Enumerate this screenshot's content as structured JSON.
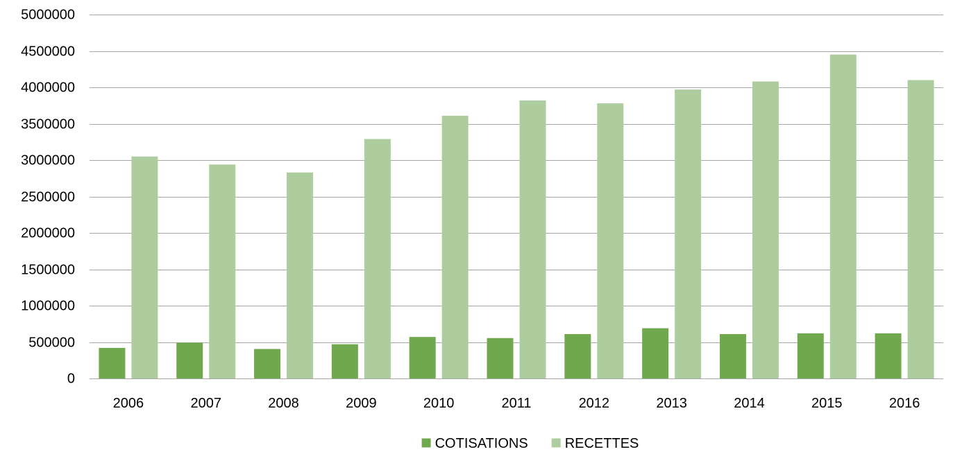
{
  "chart_data": {
    "type": "bar",
    "title": "",
    "xlabel": "",
    "ylabel": "",
    "categories": [
      "2006",
      "2007",
      "2008",
      "2009",
      "2010",
      "2011",
      "2012",
      "2013",
      "2014",
      "2015",
      "2016"
    ],
    "series": [
      {
        "name": "COTISATIONS",
        "color": "#70a84e",
        "values": [
          420000,
          490000,
          405000,
          470000,
          570000,
          555000,
          610000,
          690000,
          610000,
          620000,
          620000
        ]
      },
      {
        "name": "RECETTES",
        "color": "#aecd9f",
        "values": [
          3050000,
          2940000,
          2830000,
          3290000,
          3610000,
          3820000,
          3780000,
          3970000,
          4080000,
          4450000,
          4100000
        ]
      }
    ],
    "ylim": [
      0,
      5000000
    ],
    "yticks": [
      "0",
      "500000",
      "1000000",
      "1500000",
      "2000000",
      "2500000",
      "3000000",
      "3500000",
      "4000000",
      "4500000",
      "5000000"
    ],
    "grid": true,
    "legend_position": "bottom"
  }
}
